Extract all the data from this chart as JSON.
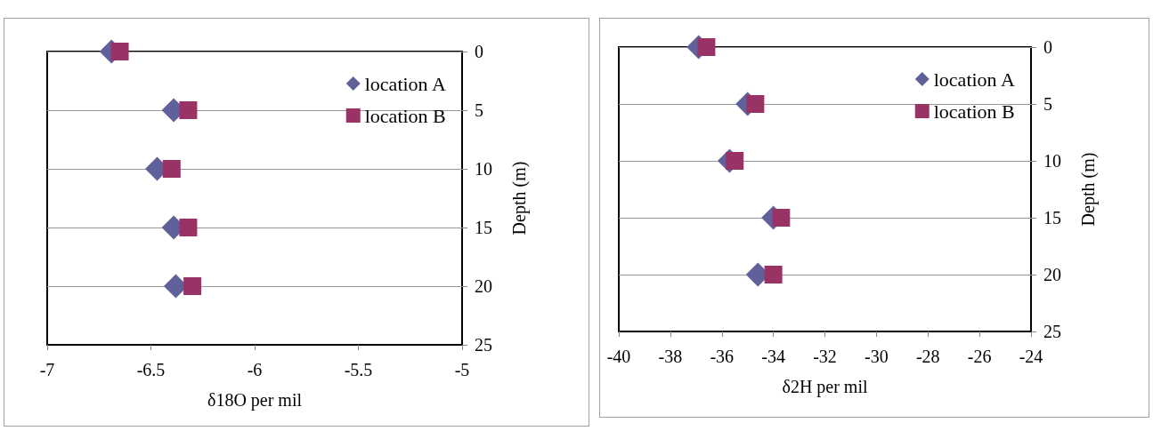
{
  "chart_data": [
    {
      "type": "scatter",
      "xlabel": "δ18O per mil",
      "ylabel": "Depth (m)",
      "xlim": [
        -7,
        -5
      ],
      "xticks": [
        -7,
        -6.5,
        -6,
        -5.5,
        -5
      ],
      "ylim": [
        25,
        0
      ],
      "yticks": [
        0,
        5,
        10,
        15,
        20,
        25
      ],
      "grid": "y",
      "legend": "top right",
      "series": [
        {
          "name": "location A",
          "color": "#60609a",
          "marker": "diamond",
          "x": [
            -6.69,
            -6.39,
            -6.47,
            -6.39,
            -6.38
          ],
          "values": [
            0,
            5,
            10,
            15,
            20
          ]
        },
        {
          "name": "location B",
          "color": "#993366",
          "marker": "square",
          "x": [
            -6.65,
            -6.32,
            -6.4,
            -6.32,
            -6.3
          ],
          "values": [
            0,
            5,
            10,
            15,
            20
          ]
        }
      ]
    },
    {
      "type": "scatter",
      "xlabel": "δ2H per mil",
      "ylabel": "Depth (m)",
      "xlim": [
        -40,
        -24
      ],
      "xticks": [
        -40,
        -38,
        -36,
        -34,
        -32,
        -30,
        -28,
        -26,
        -24
      ],
      "ylim": [
        25,
        0
      ],
      "yticks": [
        0,
        5,
        10,
        15,
        20,
        25
      ],
      "grid": "y",
      "legend": "top right",
      "series": [
        {
          "name": "location A",
          "color": "#60609a",
          "marker": "diamond",
          "x": [
            -36.9,
            -35.0,
            -35.7,
            -34.0,
            -34.6
          ],
          "values": [
            0,
            5,
            10,
            15,
            20
          ]
        },
        {
          "name": "location B",
          "color": "#993366",
          "marker": "square",
          "x": [
            -36.6,
            -34.7,
            -35.5,
            -33.7,
            -34.0
          ],
          "values": [
            0,
            5,
            10,
            15,
            20
          ]
        }
      ]
    }
  ]
}
